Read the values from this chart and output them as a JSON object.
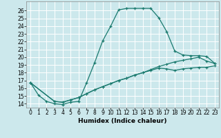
{
  "title": "",
  "xlabel": "Humidex (Indice chaleur)",
  "ylabel": "",
  "bg_color": "#cce8ec",
  "line_color": "#1a7a6e",
  "grid_color": "#ffffff",
  "xlim": [
    -0.5,
    23.5
  ],
  "ylim": [
    13.5,
    27.2
  ],
  "xticks": [
    0,
    1,
    2,
    3,
    4,
    5,
    6,
    7,
    8,
    9,
    10,
    11,
    12,
    13,
    14,
    15,
    16,
    17,
    18,
    19,
    20,
    21,
    22,
    23
  ],
  "yticks": [
    14,
    15,
    16,
    17,
    18,
    19,
    20,
    21,
    22,
    23,
    24,
    25,
    26
  ],
  "series1_x": [
    0,
    1,
    2,
    3,
    4,
    5,
    6,
    7,
    8,
    9,
    10,
    11,
    12,
    13,
    14,
    15,
    16,
    17,
    18,
    19,
    20,
    21,
    22,
    23
  ],
  "series1_y": [
    16.7,
    15.1,
    14.3,
    14.0,
    13.9,
    14.2,
    14.3,
    16.7,
    19.3,
    22.1,
    24.0,
    26.1,
    26.3,
    26.3,
    26.3,
    26.3,
    25.1,
    23.3,
    20.8,
    20.3,
    20.2,
    20.2,
    20.1,
    19.2
  ],
  "series2_x": [
    0,
    3,
    4,
    5,
    6,
    7,
    8,
    9,
    10,
    11,
    12,
    13,
    14,
    15,
    16,
    17,
    18,
    19,
    20,
    21,
    22,
    23
  ],
  "series2_y": [
    16.7,
    14.3,
    14.2,
    14.5,
    14.8,
    15.3,
    15.8,
    16.2,
    16.6,
    17.0,
    17.3,
    17.7,
    18.0,
    18.4,
    18.8,
    19.1,
    19.4,
    19.6,
    19.8,
    20.0,
    19.5,
    19.2
  ],
  "series3_x": [
    0,
    3,
    4,
    5,
    6,
    7,
    8,
    9,
    10,
    11,
    12,
    13,
    14,
    15,
    16,
    17,
    18,
    19,
    20,
    21,
    22,
    23
  ],
  "series3_y": [
    16.7,
    14.3,
    14.2,
    14.5,
    14.8,
    15.3,
    15.8,
    16.2,
    16.6,
    17.0,
    17.3,
    17.7,
    18.0,
    18.3,
    18.6,
    18.5,
    18.3,
    18.5,
    18.6,
    18.7,
    18.7,
    18.9
  ],
  "xlabel_fontsize": 6.5,
  "tick_fontsize": 5.5
}
